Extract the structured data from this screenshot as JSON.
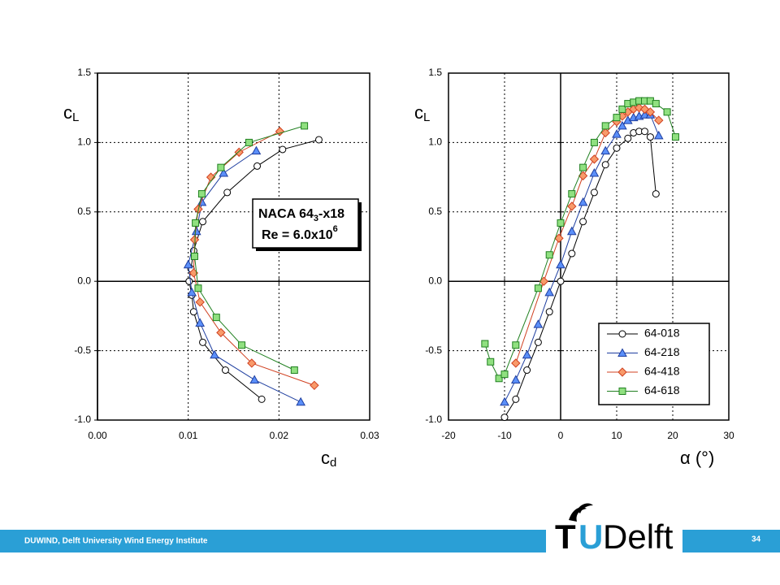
{
  "chart_data": [
    {
      "type": "line",
      "xlabel": "c",
      "xlabel_sub": "d",
      "ylabel": "c",
      "ylabel_sub": "L",
      "xlim": [
        0,
        0.03
      ],
      "xticks": [
        {
          "value": 0,
          "label": "0.00"
        },
        {
          "value": 0.01,
          "label": "0.01"
        },
        {
          "value": 0.02,
          "label": "0.02"
        },
        {
          "value": 0.03,
          "label": "0.03"
        }
      ],
      "ylim": [
        -1,
        1.5
      ],
      "yticks": [
        {
          "value": -1,
          "label": "-1.0"
        },
        {
          "value": -0.5,
          "label": "-0.5"
        },
        {
          "value": 0,
          "label": "0.0"
        },
        {
          "value": 0.5,
          "label": "0.5"
        },
        {
          "value": 1,
          "label": "1.0"
        },
        {
          "value": 1.5,
          "label": "1.5"
        }
      ],
      "grid": true,
      "annotation": {
        "line1": "NACA 64",
        "line1_sub": "3",
        "line1_end": "-x18",
        "line2": "Re = 6.0x10",
        "line2_sup": "6"
      },
      "series": [
        {
          "marker": "circle",
          "color": "#000000",
          "fill": "#ffffff",
          "x": [
            0.0244,
            0.0204,
            0.0176,
            0.0143,
            0.0116,
            0.0106,
            0.0103,
            0.0101,
            0.0104,
            0.0106,
            0.0116,
            0.0141,
            0.0181
          ],
          "values": [
            1.02,
            0.95,
            0.83,
            0.64,
            0.43,
            0.22,
            0.09,
            0,
            -0.1,
            -0.22,
            -0.44,
            -0.64,
            -0.85
          ]
        },
        {
          "marker": "triangle",
          "color": "#1f3fa0",
          "fill": "#5b8ff9",
          "x": [
            0.0175,
            0.0139,
            0.0115,
            0.0109,
            0.01,
            0.0104,
            0.0113,
            0.0129,
            0.0173,
            0.0224
          ],
          "values": [
            0.94,
            0.78,
            0.57,
            0.36,
            0.12,
            -0.08,
            -0.3,
            -0.53,
            -0.71,
            -0.87
          ]
        },
        {
          "marker": "diamond",
          "color": "#d04020",
          "fill": "#f89a6a",
          "x": [
            0.0201,
            0.0156,
            0.0125,
            0.0111,
            0.0107,
            0.0106,
            0.0113,
            0.0136,
            0.017,
            0.0239
          ],
          "values": [
            1.08,
            0.93,
            0.75,
            0.52,
            0.3,
            0.06,
            -0.15,
            -0.37,
            -0.59,
            -0.75
          ]
        },
        {
          "marker": "square",
          "color": "#208020",
          "fill": "#90e080",
          "x": [
            0.0228,
            0.0167,
            0.0136,
            0.0115,
            0.0108,
            0.0107,
            0.0111,
            0.0131,
            0.0159,
            0.0217
          ],
          "values": [
            1.12,
            1.0,
            0.82,
            0.63,
            0.42,
            0.18,
            -0.05,
            -0.26,
            -0.46,
            -0.64
          ]
        }
      ]
    },
    {
      "type": "line",
      "xlabel": "α (°)",
      "ylabel": "c",
      "ylabel_sub": "L",
      "xlim": [
        -20,
        30
      ],
      "xticks": [
        -20,
        -10,
        0,
        10,
        20,
        30
      ],
      "ylim": [
        -1,
        1.5
      ],
      "yticks": [
        {
          "value": -1,
          "label": "-1.0"
        },
        {
          "value": -0.5,
          "label": "-0.5"
        },
        {
          "value": 0,
          "label": "0.0"
        },
        {
          "value": 0.5,
          "label": "0.5"
        },
        {
          "value": 1,
          "label": "1.0"
        },
        {
          "value": 1.5,
          "label": "1.5"
        }
      ],
      "grid": true,
      "legend": "lower right",
      "series": [
        {
          "name": "64-018",
          "marker": "circle",
          "color": "#000000",
          "fill": "#ffffff",
          "x": [
            -10,
            -8,
            -6,
            -4,
            -2,
            0,
            2,
            4,
            6,
            8,
            10,
            12,
            13,
            14,
            15,
            16,
            17
          ],
          "values": [
            -0.98,
            -0.85,
            -0.64,
            -0.44,
            -0.22,
            0,
            0.2,
            0.43,
            0.64,
            0.84,
            0.96,
            1.03,
            1.07,
            1.08,
            1.08,
            1.04,
            0.63
          ]
        },
        {
          "name": "64-218",
          "marker": "triangle",
          "color": "#1f3fa0",
          "fill": "#5b8ff9",
          "x": [
            -10,
            -8,
            -6,
            -4,
            -2,
            0,
            2,
            4,
            6,
            8,
            10,
            11,
            12,
            13,
            14,
            15,
            16,
            17.5
          ],
          "values": [
            -0.87,
            -0.71,
            -0.53,
            -0.31,
            -0.08,
            0.12,
            0.36,
            0.57,
            0.78,
            0.94,
            1.06,
            1.12,
            1.16,
            1.18,
            1.19,
            1.2,
            1.2,
            1.05
          ]
        },
        {
          "name": "64-418",
          "marker": "diamond",
          "color": "#d04020",
          "fill": "#f89a6a",
          "x": [
            -8,
            -3,
            -0.3,
            2,
            4,
            6,
            8,
            10,
            11,
            12,
            13,
            14,
            15,
            16,
            17.5
          ],
          "values": [
            -0.59,
            0,
            0.31,
            0.54,
            0.76,
            0.88,
            1.07,
            1.15,
            1.19,
            1.22,
            1.24,
            1.25,
            1.24,
            1.22,
            1.16
          ]
        },
        {
          "name": "64-618",
          "marker": "square",
          "color": "#208020",
          "fill": "#90e080",
          "x": [
            -13.5,
            -12.5,
            -11,
            -10,
            -8,
            -4,
            -2,
            0,
            2,
            4,
            6,
            8,
            10,
            11,
            12,
            13,
            14,
            15,
            16,
            17,
            19,
            20.5
          ],
          "values": [
            -0.45,
            -0.58,
            -0.7,
            -0.67,
            -0.46,
            -0.05,
            0.19,
            0.42,
            0.63,
            0.82,
            1.0,
            1.12,
            1.18,
            1.24,
            1.28,
            1.29,
            1.3,
            1.3,
            1.3,
            1.28,
            1.22,
            1.04
          ]
        }
      ]
    }
  ],
  "footer": {
    "text": "DUWIND, Delft University Wind Energy Institute",
    "page": "34",
    "logo_t": "T",
    "logo_u": "U",
    "logo_rest": "Delft"
  }
}
